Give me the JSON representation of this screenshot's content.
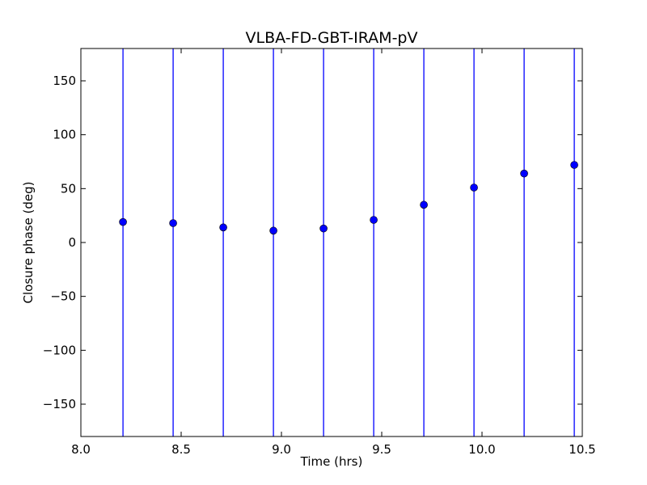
{
  "chart_data": {
    "type": "scatter",
    "title": "VLBA-FD-GBT-IRAM-pV",
    "xlabel": "Time (hrs)",
    "ylabel": "Closure phase (deg)",
    "xlim": [
      8.0,
      10.5
    ],
    "ylim": [
      -180,
      180
    ],
    "x_ticks": [
      8.0,
      8.5,
      9.0,
      9.5,
      10.0,
      10.5
    ],
    "x_tick_labels": [
      "8.0",
      "8.5",
      "9.0",
      "9.5",
      "10.0",
      "10.5"
    ],
    "y_ticks": [
      150,
      100,
      50,
      0,
      -50,
      -100,
      -150
    ],
    "y_tick_labels": [
      "150",
      "100",
      "50",
      "0",
      "−50",
      "−100",
      "−150"
    ],
    "grid": false,
    "series": [
      {
        "color": "#0000ff",
        "marker": "circle",
        "x": [
          8.21,
          8.46,
          8.71,
          8.96,
          9.21,
          9.46,
          9.71,
          9.96,
          10.21,
          10.46
        ],
        "y": [
          19,
          18,
          14,
          11,
          13,
          21,
          35,
          51,
          64,
          72
        ],
        "error_low": [
          -180,
          -180,
          -180,
          -180,
          -180,
          -180,
          -180,
          -180,
          -180,
          -180
        ],
        "error_high": [
          180,
          180,
          180,
          180,
          180,
          180,
          180,
          180,
          180,
          180
        ]
      }
    ]
  }
}
